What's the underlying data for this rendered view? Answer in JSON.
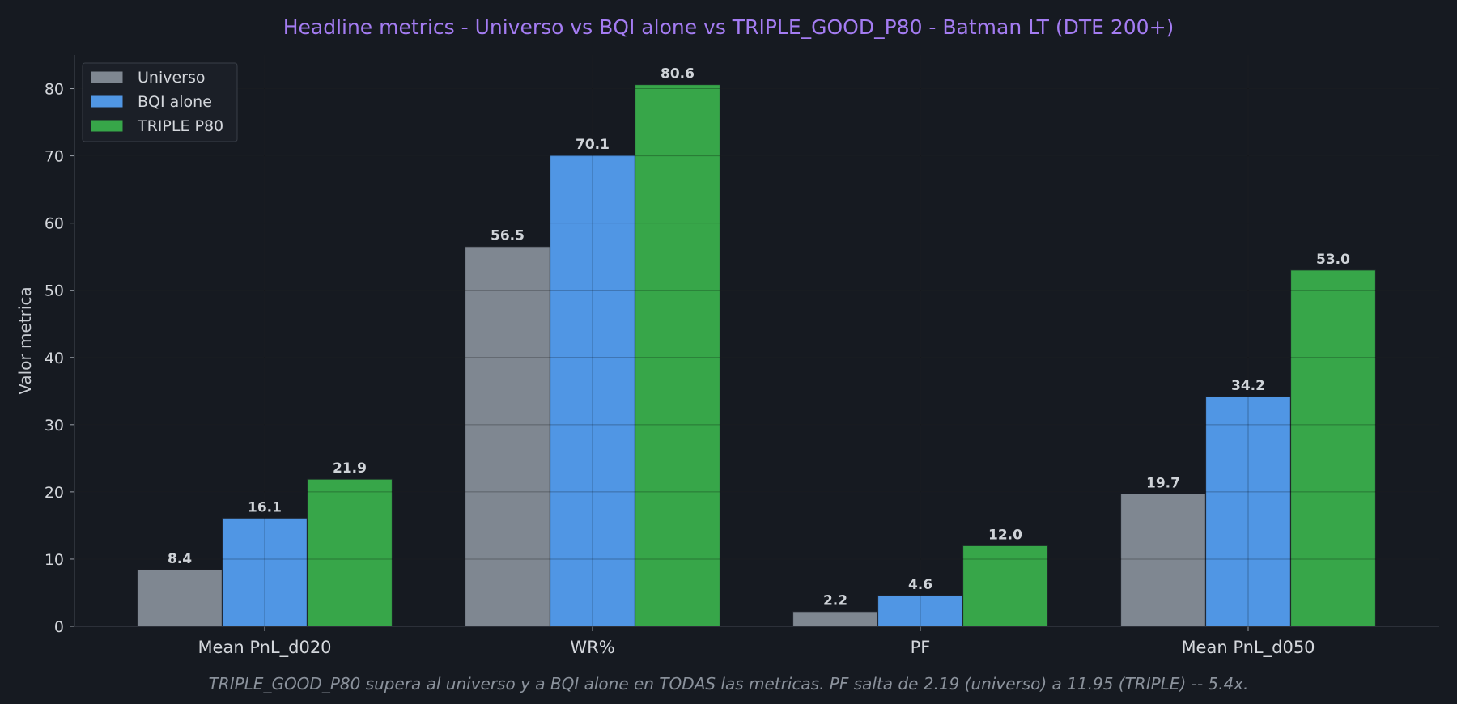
{
  "chart_data": {
    "type": "bar",
    "title": "Headline metrics  -  Universo vs BQI alone vs TRIPLE_GOOD_P80  -  Batman LT (DTE 200+)",
    "xlabel": "",
    "ylabel": "Valor metrica",
    "categories": [
      "Mean PnL_d020",
      "WR%",
      "PF",
      "Mean PnL_d050"
    ],
    "ylim": [
      0,
      85
    ],
    "yticks": [
      0,
      10,
      20,
      30,
      40,
      50,
      60,
      70,
      80
    ],
    "grid": true,
    "legend_position": "top-left",
    "series": [
      {
        "name": "Universo",
        "color": "#7f8791",
        "values": [
          8.4,
          56.5,
          2.2,
          19.7
        ],
        "labels": [
          "8.4",
          "56.5",
          "2.2",
          "19.7"
        ]
      },
      {
        "name": "BQI alone",
        "color": "#5096e4",
        "values": [
          16.1,
          70.1,
          4.6,
          34.2
        ],
        "labels": [
          "16.1",
          "70.1",
          "4.6",
          "34.2"
        ]
      },
      {
        "name": "TRIPLE P80",
        "color": "#37a649",
        "values": [
          21.9,
          80.6,
          12.0,
          53.0
        ],
        "labels": [
          "21.9",
          "80.6",
          "12.0",
          "53.0"
        ]
      }
    ],
    "footnote": "TRIPLE_GOOD_P80 supera al universo y a BQI alone en TODAS las metricas. PF salta de 2.19 (universo) a 11.95 (TRIPLE) -- 5.4x."
  },
  "colors": {
    "background": "#161a21",
    "title": "#a47cf2",
    "grid": "#23272f",
    "axis": "#3a3f48"
  }
}
